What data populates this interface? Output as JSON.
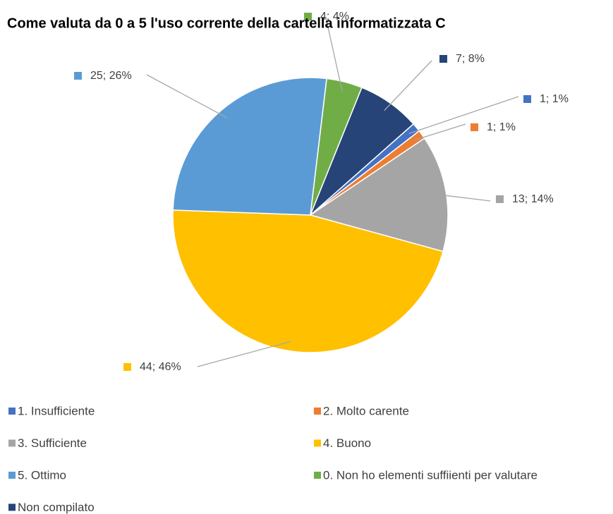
{
  "chart_data": {
    "type": "pie",
    "title": "Come valuta da 0 a 5 l'uso corrente della cartella informatizzata C",
    "categories": [
      "1. Insufficiente",
      "2. Molto carente",
      "3. Sufficiente",
      "4. Buono",
      "5. Ottimo",
      "0. Non ho elementi suffiienti per valutare",
      "Non compilato"
    ],
    "values": [
      1,
      1,
      13,
      44,
      25,
      4,
      7
    ],
    "value_labels": [
      "1; 1%",
      "1; 1%",
      "13; 14%",
      "44; 46%",
      "25; 26%",
      "4; 4%",
      "7; 8%"
    ],
    "colors": [
      "#4472c4",
      "#ed7d31",
      "#a5a5a5",
      "#ffc000",
      "#5b9bd5",
      "#70ad47",
      "#264478"
    ],
    "legend": "bottom"
  }
}
